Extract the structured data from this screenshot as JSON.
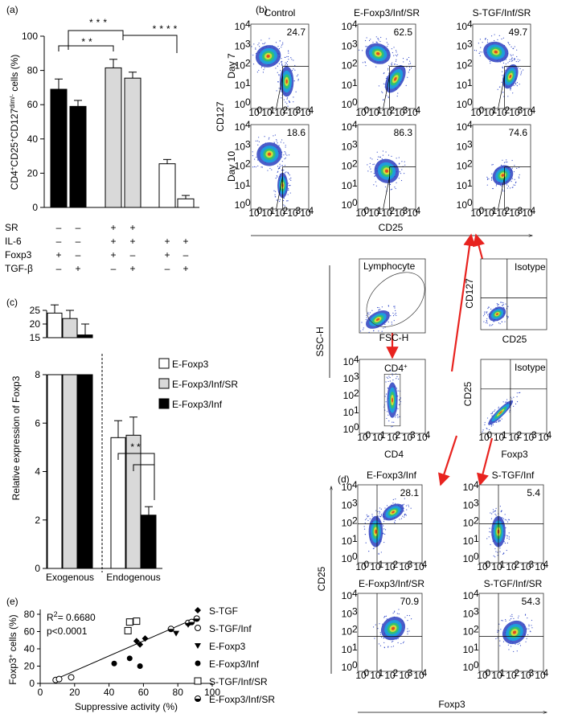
{
  "panel_labels": [
    "(a)",
    "(b)",
    "(c)",
    "(d)",
    "(e)"
  ],
  "chart_data": [
    {
      "type": "bar",
      "y_label": [
        "CD4",
        "+",
        "CD25",
        "+",
        "CD127",
        "dim/-",
        " cells (%)"
      ],
      "categories": [
        null,
        null,
        null,
        null,
        null,
        null
      ],
      "values": [
        69,
        59,
        81.5,
        75.5,
        25.5,
        5
      ],
      "errors": [
        6,
        3.5,
        5,
        3.5,
        2.5,
        2
      ],
      "colors": [
        "#000000",
        "#000000",
        "#d9d9d9",
        "#d9d9d9",
        "#ffffff",
        "#ffffff"
      ],
      "ylim": [
        0,
        100
      ],
      "yticks": [
        0,
        20,
        40,
        60,
        80,
        100
      ],
      "conditions": {
        "labels": [
          "SR",
          "IL-6",
          "Foxp3",
          "TGF-β"
        ],
        "signs": [
          [
            "–",
            "–",
            "+",
            "+",
            null,
            null
          ],
          [
            "–",
            "–",
            "+",
            "+",
            "+",
            "+"
          ],
          [
            "+",
            "–",
            "+",
            "–",
            "+",
            "–"
          ],
          [
            "–",
            "+",
            "–",
            "+",
            "–",
            "+"
          ]
        ]
      },
      "annotations": [
        "***",
        "**",
        "****"
      ]
    },
    {
      "type": "bar",
      "y_label": "Relative expression of Foxp3",
      "categories": [
        "Exogenous",
        "Endogenous"
      ],
      "series": [
        {
          "name": "E-Foxp3",
          "color": "#ffffff",
          "values": [
            24,
            5.4
          ],
          "errors": [
            3,
            0.7
          ]
        },
        {
          "name": "E-Foxp3/Inf/SR",
          "color": "#d9d9d9",
          "values": [
            22,
            5.5
          ],
          "errors": [
            3,
            0.75
          ]
        },
        {
          "name": "E-Foxp3/Inf",
          "color": "#000000",
          "values": [
            16,
            2.2
          ],
          "errors": [
            4,
            0.35
          ]
        }
      ],
      "ylim": [
        0,
        25
      ],
      "axis_break": [
        8,
        15
      ],
      "yticks": [
        0,
        2,
        4,
        6,
        8,
        15,
        20,
        25
      ],
      "annotations": [
        "**"
      ]
    },
    {
      "type": "scatter",
      "x_label": "Suppressive activity (%)",
      "y_label": [
        "Foxp3",
        "+",
        " cells (%)"
      ],
      "xlim": [
        0,
        100
      ],
      "xticks": [
        0,
        20,
        40,
        60,
        80,
        100
      ],
      "ylim": [
        0,
        80
      ],
      "yticks": [
        0,
        20,
        40,
        60,
        80
      ],
      "series": [
        {
          "name": "S-TGF",
          "marker": "diamond",
          "color": "#000000",
          "x": [
            56,
            58,
            61
          ],
          "values": [
            49,
            45,
            52
          ]
        },
        {
          "name": "S-TGF/Inf",
          "marker": "open-circle",
          "color": "#000000",
          "x": [
            9,
            11,
            18
          ],
          "values": [
            4,
            5,
            7
          ]
        },
        {
          "name": "E-Foxp3",
          "marker": "triangle-down",
          "color": "#000000",
          "x": [
            79,
            86
          ],
          "values": [
            58,
            68
          ]
        },
        {
          "name": "E-Foxp3/Inf",
          "marker": "circle",
          "color": "#000000",
          "x": [
            43,
            52,
            58
          ],
          "values": [
            23,
            29,
            20
          ]
        },
        {
          "name": "S-TGF/Inf/SR",
          "marker": "open-square",
          "color": "#000000",
          "x": [
            51,
            52,
            56
          ],
          "values": [
            61,
            71,
            72
          ]
        },
        {
          "name": "E-Foxp3/Inf/SR",
          "marker": "half-circle",
          "color": "#000000",
          "x": [
            76,
            86,
            88,
            91
          ],
          "values": [
            63,
            70,
            71,
            75
          ]
        }
      ],
      "trendline": {
        "x": [
          8,
          91
        ],
        "values": [
          4,
          76
        ]
      },
      "annotations": {
        "r2": [
          "R",
          "2",
          "= 0.6680"
        ],
        "p": "p<0.0001"
      }
    }
  ],
  "flow": {
    "panel_b": {
      "columns": [
        "Control",
        "E-Foxp3/Inf/SR",
        "S-TGF/Inf/SR"
      ],
      "rows": [
        "Day 7",
        "Day 10"
      ],
      "y_label": "CD127",
      "x_label": "CD25",
      "percentages": [
        [
          24.7,
          62.5,
          49.7
        ],
        [
          18.6,
          86.3,
          74.6
        ]
      ]
    },
    "gating": {
      "lymphocyte": "Lymphocyte",
      "isotype": "Isotype",
      "cd4_gate": [
        "CD4",
        "+"
      ],
      "ssc": "SSC-H",
      "fsc": "FSC-H",
      "cd127": "CD127",
      "cd25": "CD25",
      "cd4": "CD4",
      "foxp3": "Foxp3"
    },
    "panel_d": {
      "titles": [
        [
          "E-Foxp3/Inf",
          "S-TGF/Inf"
        ],
        [
          "E-Foxp3/Inf/SR",
          "S-TGF/Inf/SR"
        ]
      ],
      "percentages": [
        [
          28.1,
          5.4
        ],
        [
          70.9,
          54.3
        ]
      ],
      "y_label": "CD25",
      "x_label": "Foxp3"
    },
    "log_base": "10",
    "log_exponents": [
      "0",
      "1",
      "2",
      "3",
      "4"
    ]
  }
}
